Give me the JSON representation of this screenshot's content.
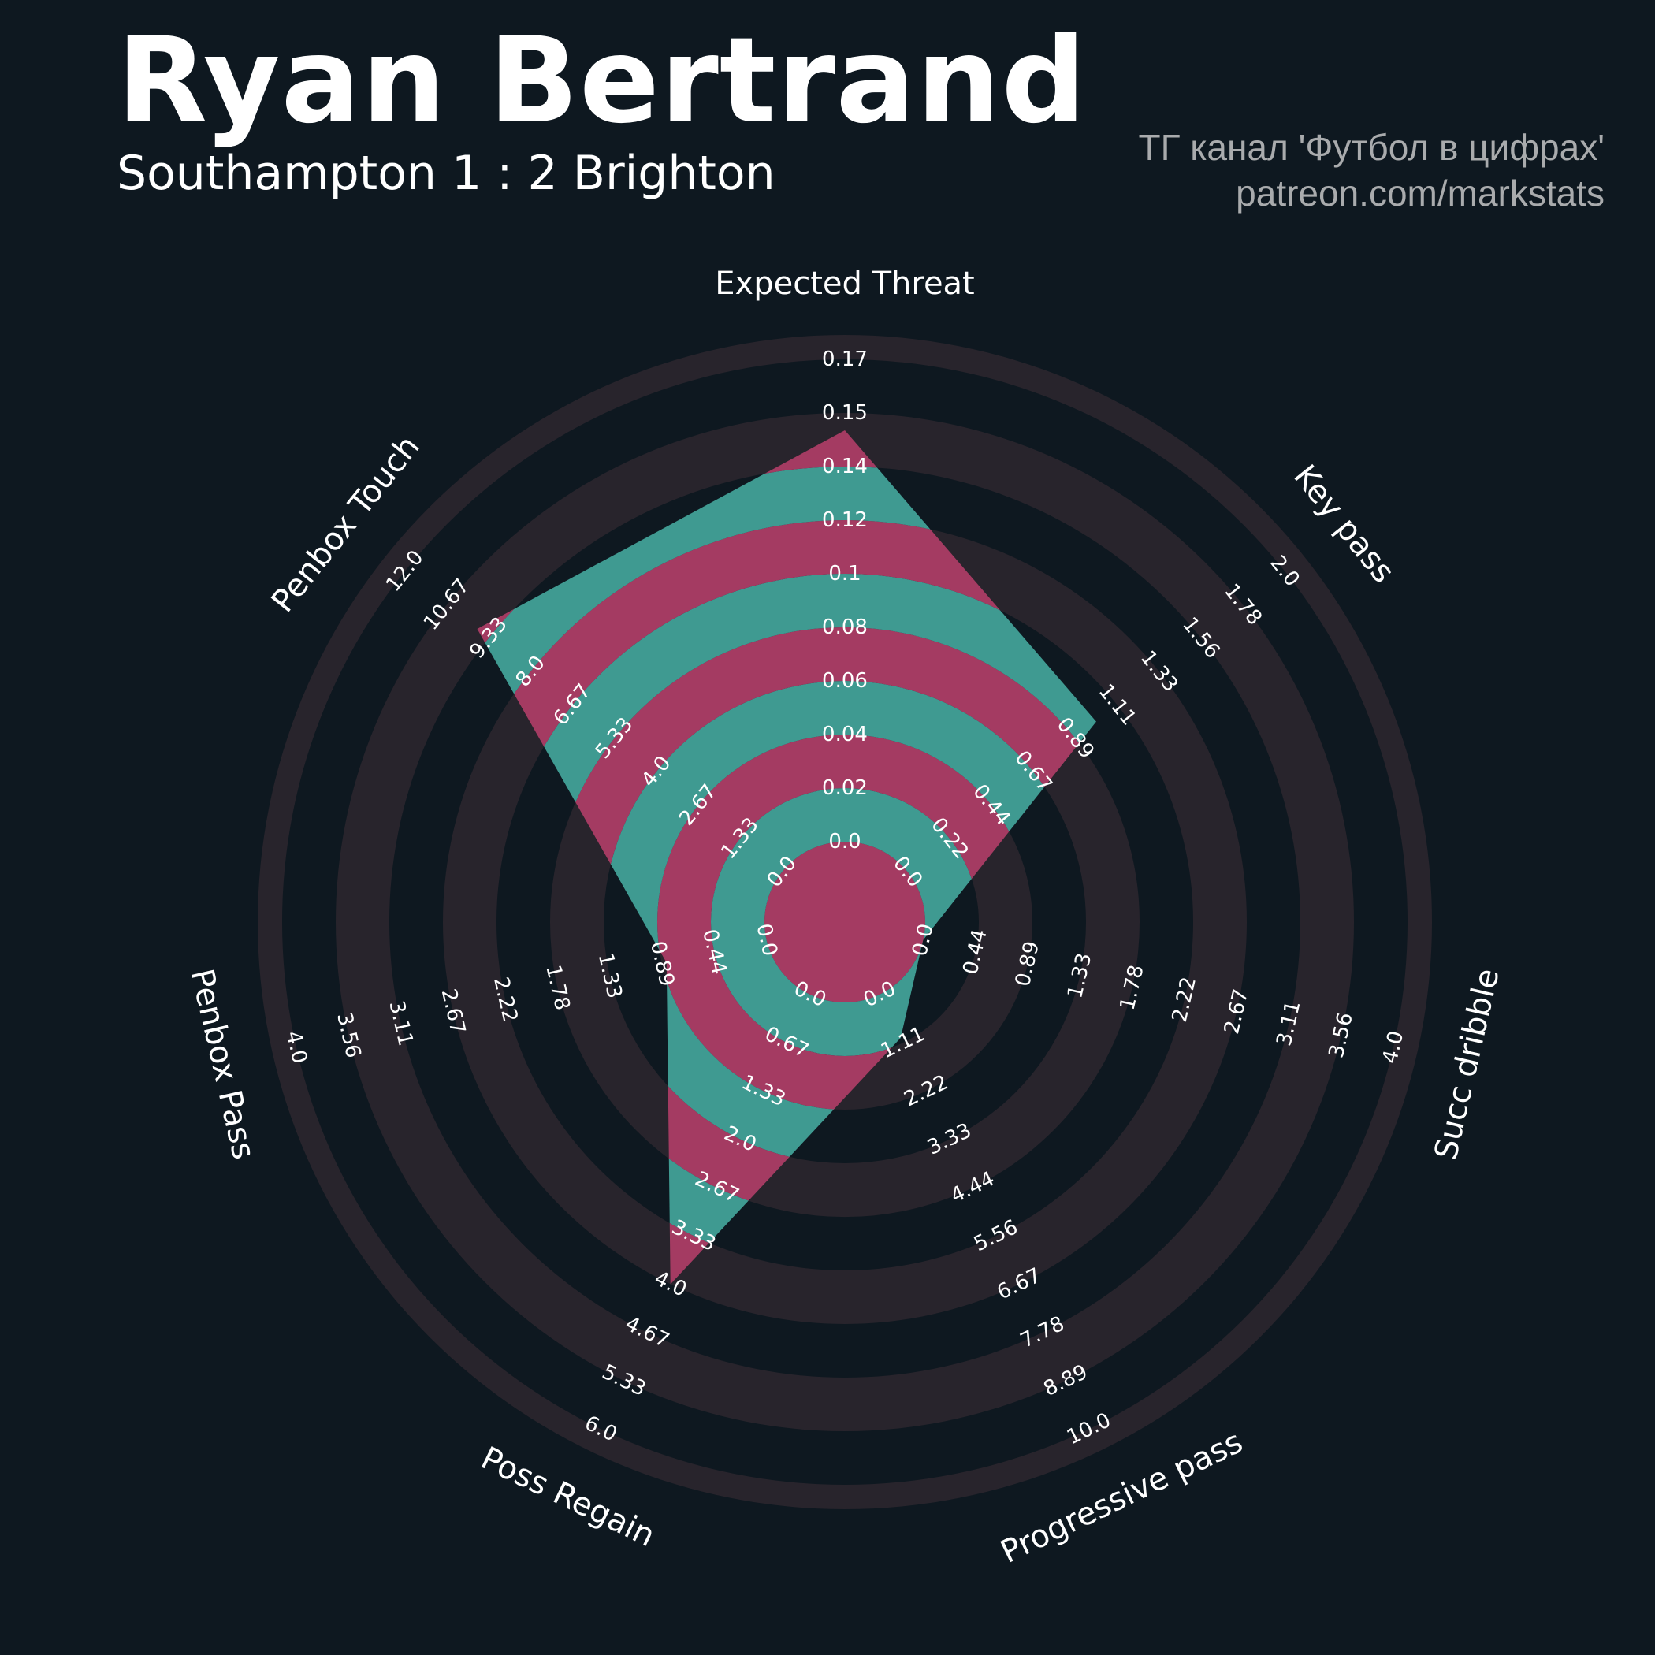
{
  "header": {
    "title": "Ryan Bertrand",
    "subtitle": "Southampton 1 : 2 Brighton",
    "credit_line1": "ТГ канал 'Футбол в цифрах'",
    "credit_line2": "patreon.com/markstats"
  },
  "colors": {
    "background": "#0e1820",
    "ring_band": "#28242c",
    "fill_teal": "#3f9a91",
    "fill_pink": "#a43b62",
    "text": "#ffffff",
    "credit_text": "#a9abad"
  },
  "chart_data": {
    "type": "radar",
    "ring_count": 10,
    "params": [
      {
        "label": "Expected Threat",
        "min": 0.0,
        "max": 0.17,
        "value": 0.145,
        "ticks": [
          "0.0",
          "0.02",
          "0.04",
          "0.06",
          "0.08",
          "0.1",
          "0.12",
          "0.14",
          "0.15",
          "0.17"
        ]
      },
      {
        "label": "Key pass",
        "min": 0.0,
        "max": 2.0,
        "value": 1.0,
        "ticks": [
          "0.0",
          "0.22",
          "0.44",
          "0.67",
          "0.89",
          "1.11",
          "1.33",
          "1.56",
          "1.78",
          "2.0"
        ]
      },
      {
        "label": "Succ dribble",
        "min": 0.0,
        "max": 4.0,
        "value": 0.0,
        "ticks": [
          "0.0",
          "0.44",
          "0.89",
          "1.33",
          "1.78",
          "2.22",
          "2.67",
          "3.11",
          "3.56",
          "4.0"
        ]
      },
      {
        "label": "Progressive pass",
        "min": 0.0,
        "max": 10.0,
        "value": 1.0,
        "ticks": [
          "0.0",
          "1.11",
          "2.22",
          "3.33",
          "4.44",
          "5.56",
          "6.67",
          "7.78",
          "8.89",
          "10.0"
        ]
      },
      {
        "label": "Poss Regain",
        "min": 0.0,
        "max": 6.0,
        "value": 4.0,
        "ticks": [
          "0.0",
          "0.67",
          "1.33",
          "2.0",
          "2.67",
          "3.33",
          "4.0",
          "4.67",
          "5.33",
          "6.0"
        ]
      },
      {
        "label": "Penbox Pass",
        "min": 0.0,
        "max": 4.0,
        "value": 0.85,
        "ticks": [
          "0.0",
          "0.44",
          "0.89",
          "1.33",
          "1.78",
          "2.22",
          "2.67",
          "3.11",
          "3.56",
          "4.0"
        ]
      },
      {
        "label": "Penbox Touch",
        "min": 0.0,
        "max": 12.0,
        "value": 9.7,
        "ticks": [
          "0.0",
          "1.33",
          "2.67",
          "4.0",
          "5.33",
          "6.67",
          "8.0",
          "9.33",
          "10.67",
          "12.0"
        ]
      }
    ]
  }
}
